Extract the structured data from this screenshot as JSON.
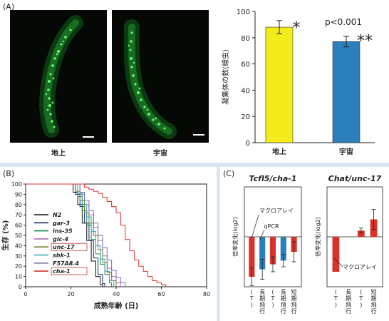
{
  "panelA": {
    "label": "(A)",
    "images": [
      {
        "caption": "地上"
      },
      {
        "caption": "宇宙"
      }
    ],
    "chart_data": {
      "type": "bar",
      "categories": [
        "地上",
        "宇宙"
      ],
      "values": [
        88,
        77
      ],
      "errors": [
        5,
        4
      ],
      "colors": [
        "#f3ec1a",
        "#2c7fbd"
      ],
      "ylabel": "凝集体の数(線虫)",
      "ylim": [
        0,
        100
      ],
      "yticks": [
        "0",
        "20",
        "40",
        "60",
        "80",
        "100"
      ],
      "annotations": [
        "*",
        "p<0.001",
        "**"
      ]
    }
  },
  "panelB": {
    "label": "(B)",
    "chart_data": {
      "type": "line",
      "ylabel": "生存 (%)",
      "xlabel": "成熟年齢 (日)",
      "xlim": [
        0,
        80
      ],
      "ylim": [
        0,
        100
      ],
      "xticks": [
        "0",
        "20",
        "40",
        "60",
        "80"
      ],
      "yticks": [
        "0",
        "10",
        "20",
        "30",
        "40",
        "50",
        "60",
        "70",
        "80",
        "90",
        "100"
      ],
      "series": [
        {
          "name": "N2",
          "color": "#111111",
          "values": [
            [
              0,
              100
            ],
            [
              19,
              100
            ],
            [
              21,
              92
            ],
            [
              23,
              80
            ],
            [
              25,
              62
            ],
            [
              27,
              45
            ],
            [
              29,
              25
            ],
            [
              31,
              10
            ],
            [
              33,
              2
            ],
            [
              34,
              0
            ]
          ]
        },
        {
          "name": "gar-3",
          "color": "#1b2a6b",
          "values": [
            [
              0,
              100
            ],
            [
              20,
              100
            ],
            [
              22,
              90
            ],
            [
              24,
              78
            ],
            [
              26,
              62
            ],
            [
              28,
              45
            ],
            [
              30,
              28
            ],
            [
              32,
              12
            ],
            [
              34,
              3
            ],
            [
              35,
              0
            ]
          ]
        },
        {
          "name": "ins-35",
          "color": "#0e8a4a",
          "values": [
            [
              0,
              100
            ],
            [
              21,
              100
            ],
            [
              23,
              88
            ],
            [
              25,
              74
            ],
            [
              27,
              60
            ],
            [
              29,
              46
            ],
            [
              31,
              32
            ],
            [
              33,
              22
            ],
            [
              35,
              12
            ],
            [
              37,
              4
            ],
            [
              38,
              0
            ]
          ]
        },
        {
          "name": "glc-4",
          "color": "#b068c0",
          "values": [
            [
              0,
              100
            ],
            [
              22,
              100
            ],
            [
              24,
              90
            ],
            [
              26,
              80
            ],
            [
              28,
              70
            ],
            [
              30,
              58
            ],
            [
              32,
              45
            ],
            [
              34,
              30
            ],
            [
              36,
              18
            ],
            [
              38,
              10
            ],
            [
              40,
              4
            ],
            [
              42,
              0
            ]
          ]
        },
        {
          "name": "unc-17",
          "color": "#7a7a2a",
          "values": [
            [
              0,
              100
            ],
            [
              20,
              100
            ],
            [
              22,
              93
            ],
            [
              24,
              84
            ],
            [
              26,
              72
            ],
            [
              28,
              62
            ],
            [
              30,
              50
            ],
            [
              32,
              36
            ],
            [
              34,
              24
            ],
            [
              36,
              14
            ],
            [
              38,
              6
            ],
            [
              40,
              0
            ]
          ]
        },
        {
          "name": "shk-1",
          "color": "#2aa5b5",
          "values": [
            [
              0,
              100
            ],
            [
              21,
              100
            ],
            [
              23,
              91
            ],
            [
              25,
              80
            ],
            [
              27,
              68
            ],
            [
              29,
              54
            ],
            [
              31,
              40
            ],
            [
              33,
              27
            ],
            [
              35,
              15
            ],
            [
              37,
              6
            ],
            [
              39,
              0
            ]
          ]
        },
        {
          "name": "F57A8.4",
          "color": "#7d6fb0",
          "values": [
            [
              0,
              100
            ],
            [
              22,
              100
            ],
            [
              24,
              92
            ],
            [
              26,
              84
            ],
            [
              28,
              74
            ],
            [
              30,
              62
            ],
            [
              32,
              50
            ],
            [
              34,
              38
            ],
            [
              36,
              26
            ],
            [
              38,
              16
            ],
            [
              40,
              9
            ],
            [
              42,
              4
            ],
            [
              44,
              0
            ]
          ]
        },
        {
          "name": "cha-1",
          "color": "#d8322a",
          "values": [
            [
              0,
              100
            ],
            [
              24,
              100
            ],
            [
              26,
              97
            ],
            [
              28,
              95
            ],
            [
              30,
              93
            ],
            [
              32,
              91
            ],
            [
              34,
              87
            ],
            [
              36,
              83
            ],
            [
              38,
              78
            ],
            [
              40,
              72
            ],
            [
              42,
              60
            ],
            [
              44,
              46
            ],
            [
              46,
              35
            ],
            [
              48,
              26
            ],
            [
              50,
              20
            ],
            [
              52,
              15
            ],
            [
              54,
              10
            ],
            [
              56,
              6
            ],
            [
              58,
              4
            ],
            [
              60,
              2
            ],
            [
              62,
              0
            ]
          ]
        }
      ]
    }
  },
  "panelC": {
    "label": "(C)",
    "chart_data": [
      {
        "type": "bar",
        "title": "Tcfl5/cha-1",
        "ylabel": "倍率変化(log2)",
        "ylim": [
          -2,
          2
        ],
        "categories": [
          "(T)",
          "長期飛行",
          "(T)",
          "長期飛行",
          "短期飛行"
        ],
        "colors": [
          "#d8322a",
          "#2c7fbd",
          "#d8322a",
          "#2c7fbd",
          "#d8322a"
        ],
        "values": [
          -1.6,
          -1.3,
          -1.1,
          -0.95,
          -0.6
        ],
        "errors": [
          0.35,
          0.4,
          0.3,
          0.25,
          0.4
        ],
        "annotations": [
          "マクロアレイ",
          "qPCR"
        ]
      },
      {
        "type": "bar",
        "title": "Chat/unc-17",
        "ylabel": "倍率変化(log2)",
        "ylim": [
          -2,
          2
        ],
        "categories": [
          "(T)",
          "長期飛行",
          "(T)",
          "短期飛行"
        ],
        "colors": [
          "#d8322a",
          "#d8322a",
          "#d8322a",
          "#d8322a"
        ],
        "values": [
          -1.4,
          0,
          0.25,
          0.7
        ],
        "errors": [
          0,
          0,
          0.1,
          0.4
        ],
        "annotations": [
          "マクロアレイ"
        ]
      }
    ]
  }
}
